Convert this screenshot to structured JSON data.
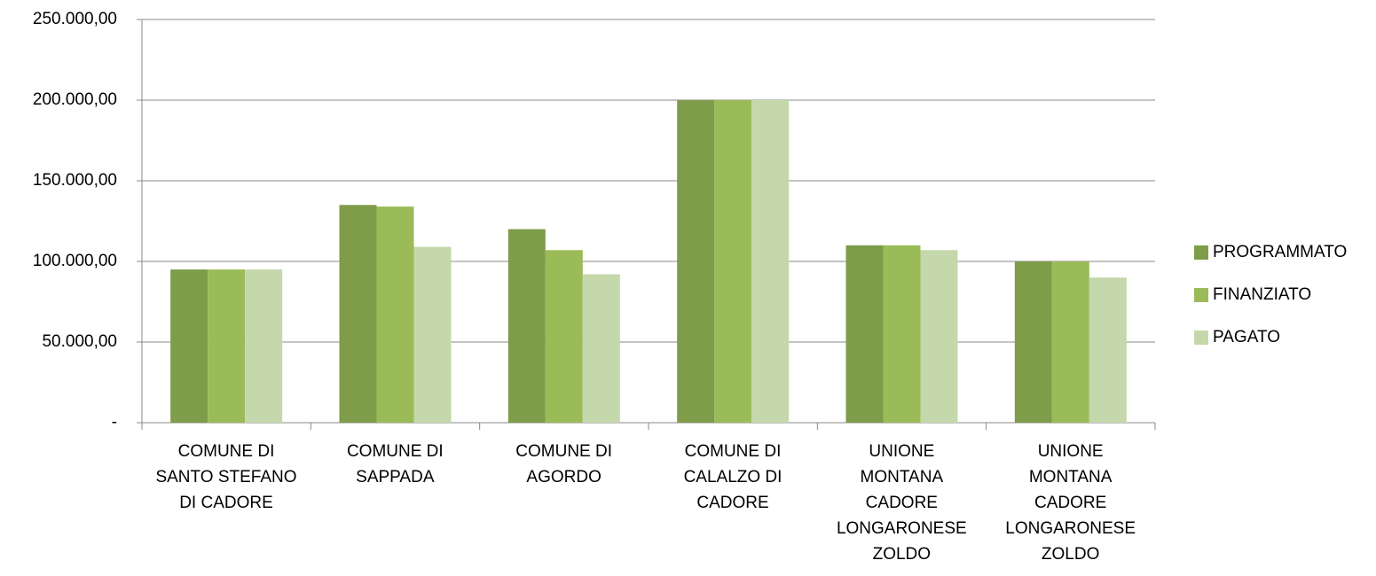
{
  "chart_data": {
    "type": "bar",
    "categories": [
      "COMUNE DI\nSANTO STEFANO\nDI CADORE",
      "COMUNE DI\nSAPPADA",
      "COMUNE DI\nAGORDO",
      "COMUNE DI\nCALALZO DI\nCADORE",
      "UNIONE\nMONTANA\nCADORE\nLONGARONESE\nZOLDO",
      "UNIONE\nMONTANA\nCADORE\nLONGARONESE\nZOLDO"
    ],
    "series": [
      {
        "name": "PROGRAMMATO",
        "color": "#7f9c4a",
        "values": [
          95000,
          135000,
          120000,
          200000,
          110000,
          100000
        ]
      },
      {
        "name": "FINANZIATO",
        "color": "#9bbb59",
        "values": [
          95000,
          134000,
          107000,
          200000,
          110000,
          100000
        ]
      },
      {
        "name": "PAGATO",
        "color": "#c5d8ab",
        "values": [
          95000,
          109000,
          92000,
          200000,
          107000,
          90000
        ]
      }
    ],
    "ylim": [
      0,
      250000
    ],
    "yticks": [
      {
        "value": 0,
        "label": "-"
      },
      {
        "value": 50000,
        "label": "50.000,00"
      },
      {
        "value": 100000,
        "label": "100.000,00"
      },
      {
        "value": 150000,
        "label": "150.000,00"
      },
      {
        "value": 200000,
        "label": "200.000,00"
      },
      {
        "value": 250000,
        "label": "250.000,00"
      }
    ],
    "grid": true,
    "legend": "right"
  }
}
